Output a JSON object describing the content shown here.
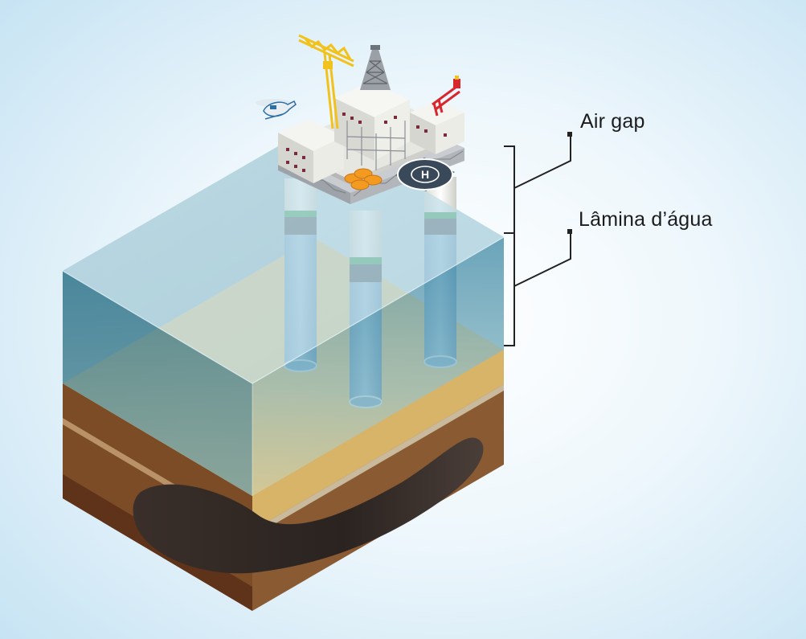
{
  "diagram": {
    "subject": "offshore-oil-platform",
    "labels": {
      "air_gap": "Air gap",
      "water_depth": "Lâmina d’água"
    },
    "heliport_marking": "H",
    "colors": {
      "sky_glow": "#cfe8f6",
      "water": "#4f90aa",
      "seabed_sand": "#e3c27c",
      "rock_brown": "#7a4a25",
      "oil_reservoir": "#2d2522",
      "column_white": "#eeeeea",
      "column_band": "#24964a",
      "crane_yellow": "#f1c21b",
      "crane_red": "#d8262f",
      "bracket_line": "#222222"
    }
  }
}
